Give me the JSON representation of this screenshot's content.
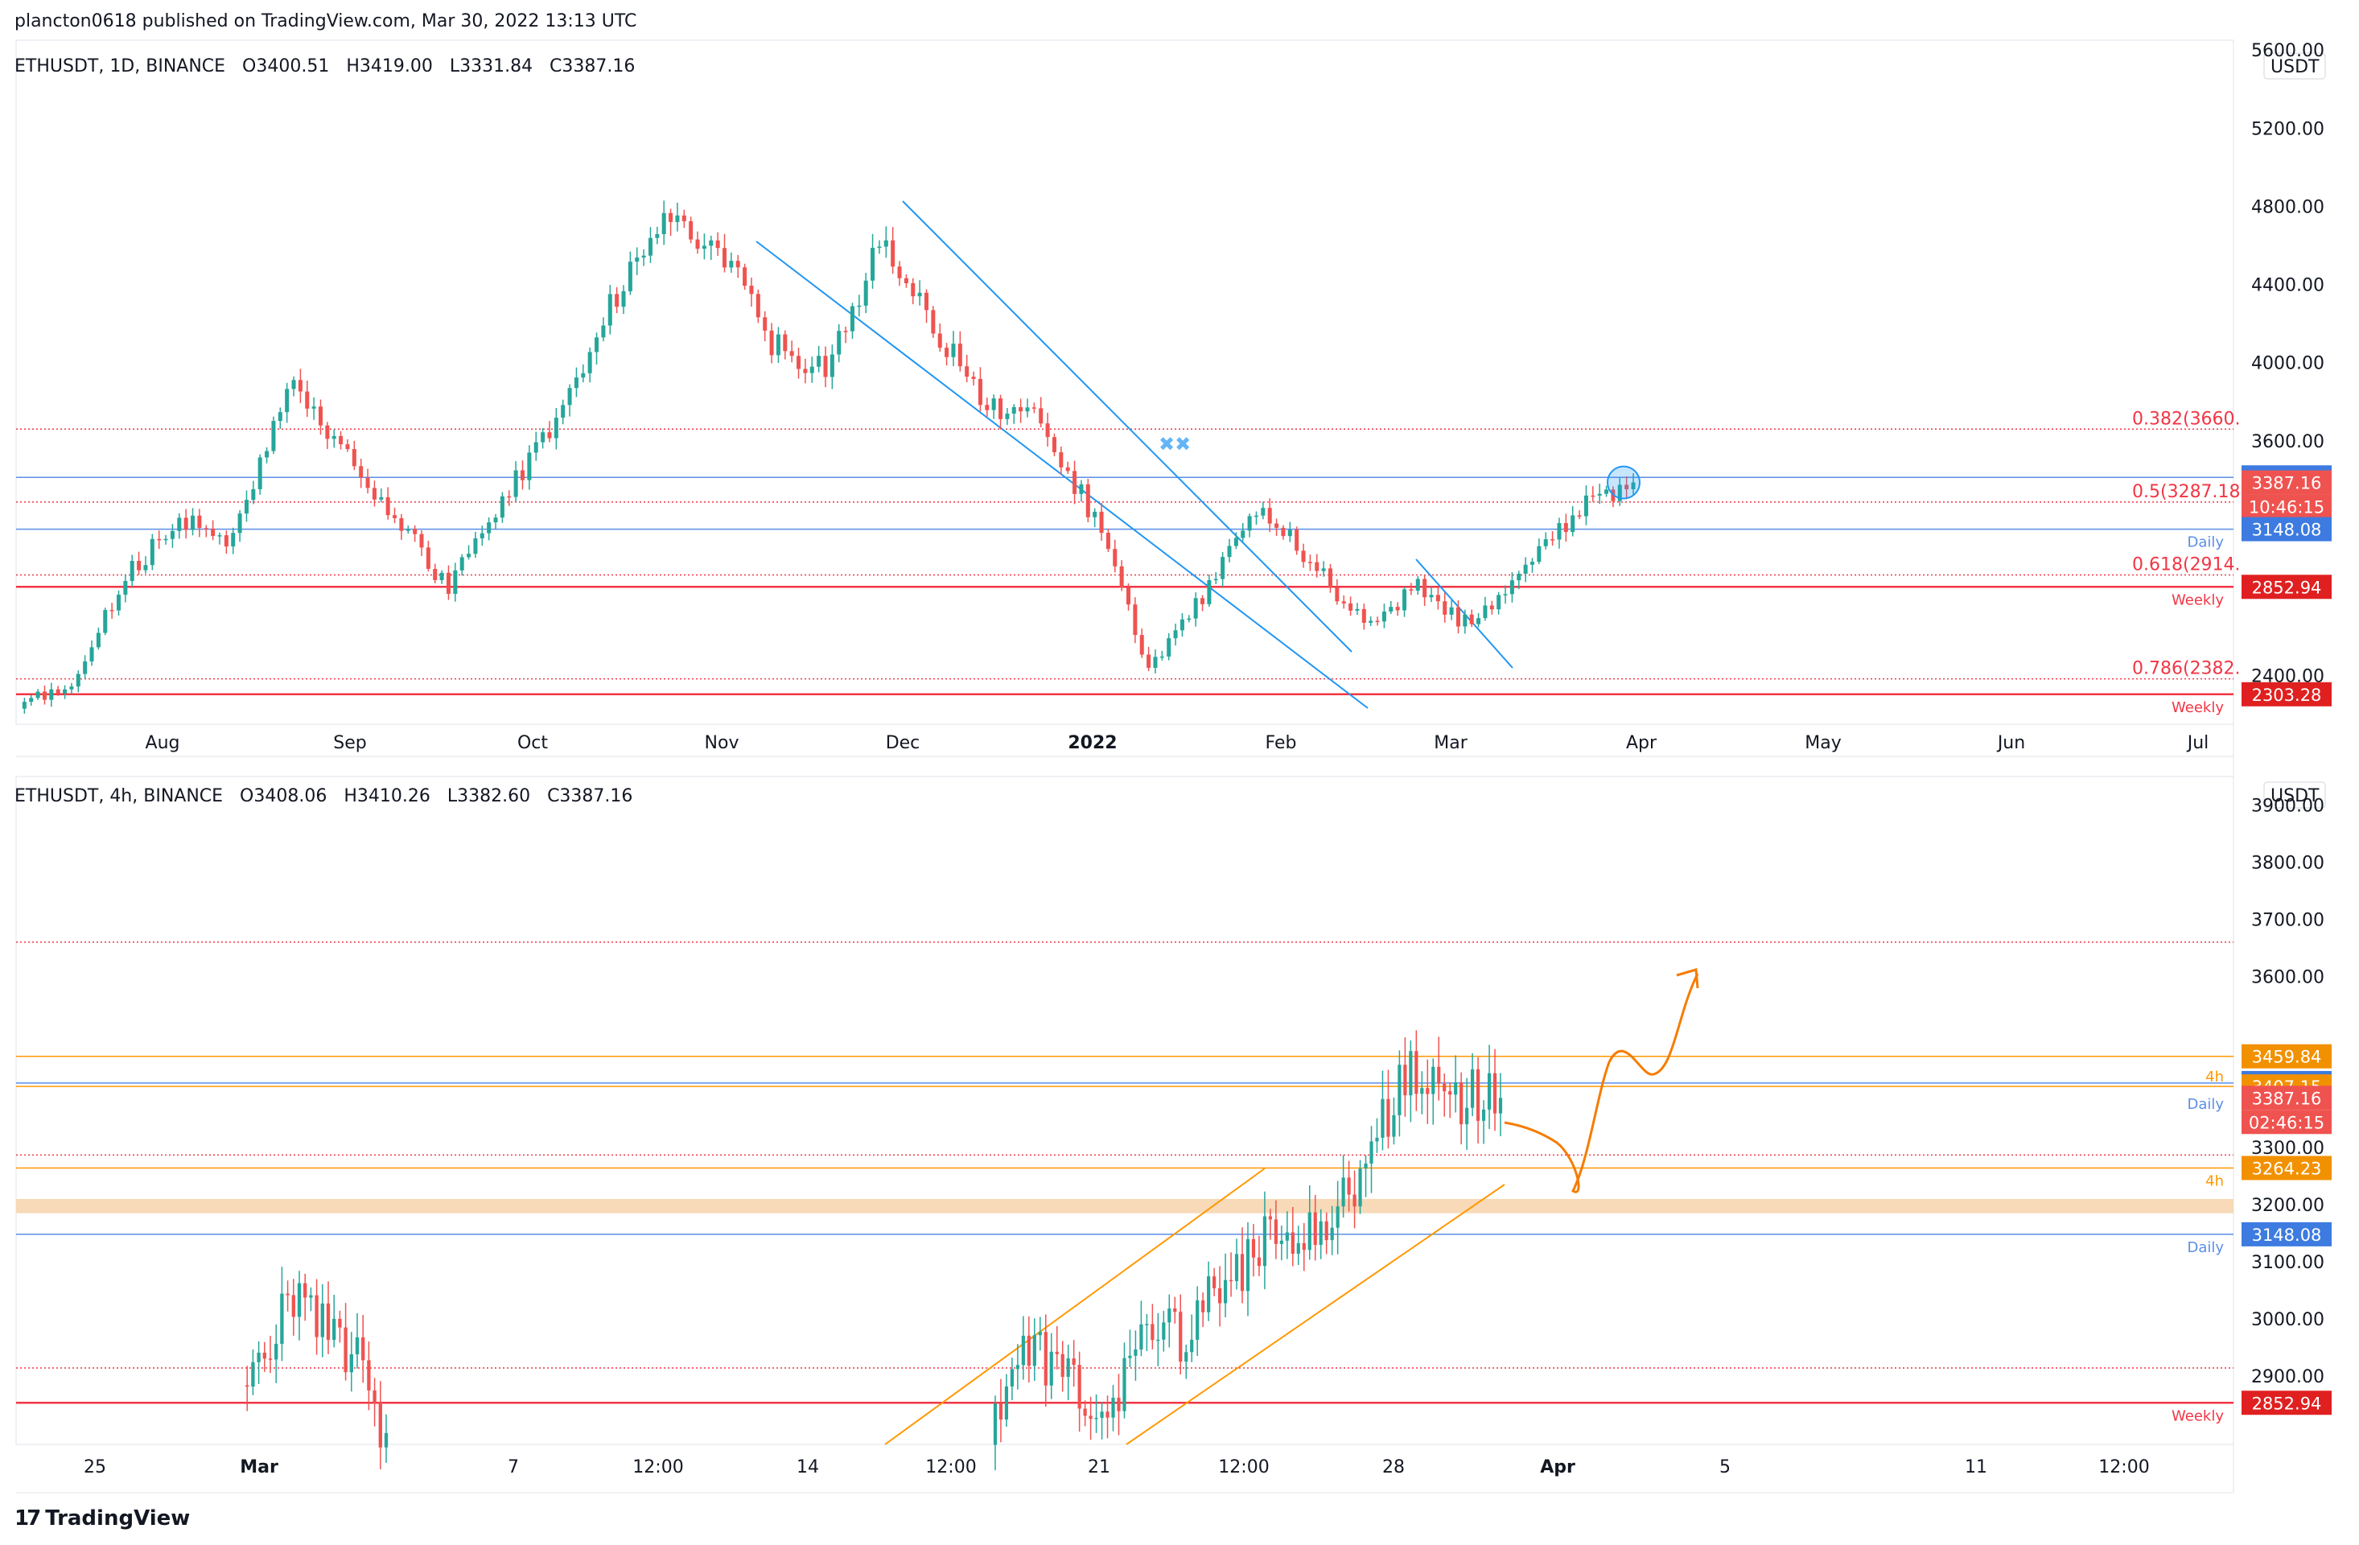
{
  "header": {
    "published": "plancton0618 published on TradingView.com, Mar 30, 2022 13:13 UTC"
  },
  "footer": {
    "brand": "TradingView",
    "logo_icon": "tradingview-logo-icon"
  },
  "colors": {
    "up": "#26a69a",
    "down": "#ef5350",
    "blue_line": "#5b8ee6",
    "red_line": "#f23645",
    "orange": "#ff9800",
    "channel_blue": "#2196f3",
    "zone": "#f8d9b8",
    "projection": "#f57c00"
  },
  "top_chart": {
    "ohlc": {
      "symbol": "ETHUSDT, 1D, BINANCE",
      "o": "O3400.51",
      "h": "H3419.00",
      "l": "L3331.84",
      "c": "C3387.16"
    },
    "currency": "USDT",
    "y_ticks": [
      "5600.00",
      "5200.00",
      "4800.00",
      "4400.00",
      "4000.00",
      "3600.00",
      "2400.00"
    ],
    "x_ticks": [
      "Aug",
      "Sep",
      "Oct",
      "Nov",
      "Dec",
      "2022",
      "Feb",
      "Mar",
      "Apr",
      "May",
      "Jun",
      "Jul"
    ],
    "fib_labels": [
      "0.382(3660.",
      "0.5(3287.18",
      "0.618(2914.",
      "0.786(2382."
    ],
    "line_labels": [
      "Daily",
      "Weekly",
      "Weekly"
    ],
    "price_badges": [
      "3413.03",
      "3387.16",
      "10:46:15",
      "3148.08",
      "2852.94",
      "2303.28"
    ]
  },
  "bottom_chart": {
    "ohlc": {
      "symbol": "ETHUSDT, 4h, BINANCE",
      "o": "O3408.06",
      "h": "H3410.26",
      "l": "L3382.60",
      "c": "C3387.16"
    },
    "currency": "USDT",
    "y_ticks": [
      "3900.00",
      "3800.00",
      "3700.00",
      "3600.00",
      "3300.00",
      "3200.00",
      "3100.00",
      "3000.00",
      "2900.00"
    ],
    "x_ticks": [
      "25",
      "Mar",
      "7",
      "12:00",
      "14",
      "12:00",
      "21",
      "12:00",
      "28",
      "Apr",
      "5",
      "11",
      "12:00"
    ],
    "line_labels": [
      "4h",
      "Daily",
      "4h",
      "Daily",
      "Weekly"
    ],
    "price_badges": [
      "3459.84",
      "3413.03",
      "3407.15",
      "3387.16",
      "02:46:15",
      "3264.23",
      "3148.08",
      "2852.94"
    ]
  },
  "chart_data": [
    {
      "type": "candlestick",
      "title": "ETHUSDT, 1D, BINANCE",
      "ylim": [
        2150,
        5650
      ],
      "x": [
        "Jul",
        "Aug",
        "Sep",
        "Oct",
        "Nov",
        "Dec",
        "Jan",
        "Feb",
        "Mar",
        "Mar 30"
      ],
      "close": [
        2300,
        2700,
        3900,
        3000,
        4300,
        4500,
        3700,
        2600,
        2900,
        3387.16
      ],
      "levels": {
        "fib_0.382": 3660,
        "fib_0.5": 3287.18,
        "fib_0.618": 2914,
        "fib_0.786": 2382,
        "daily": 3148.08,
        "resistance": 3413.03,
        "weekly_1": 2852.94,
        "weekly_2": 2303.28
      }
    },
    {
      "type": "candlestick",
      "title": "ETHUSDT, 4h, BINANCE",
      "ylim": [
        2780,
        3950
      ],
      "x": [
        "Feb 25",
        "Mar 1",
        "Mar 7",
        "Mar 14",
        "Mar 21",
        "Mar 28",
        "Mar 30"
      ],
      "close": [
        2850,
        2950,
        2750,
        2700,
        2950,
        3300,
        3387.16
      ],
      "levels": {
        "h4_high": 3459.84,
        "daily": 3413.03,
        "h4_res": 3407.15,
        "h4_sup": 3264.23,
        "daily_sup": 3148.08,
        "weekly": 2852.94,
        "fib": 3660
      }
    }
  ]
}
